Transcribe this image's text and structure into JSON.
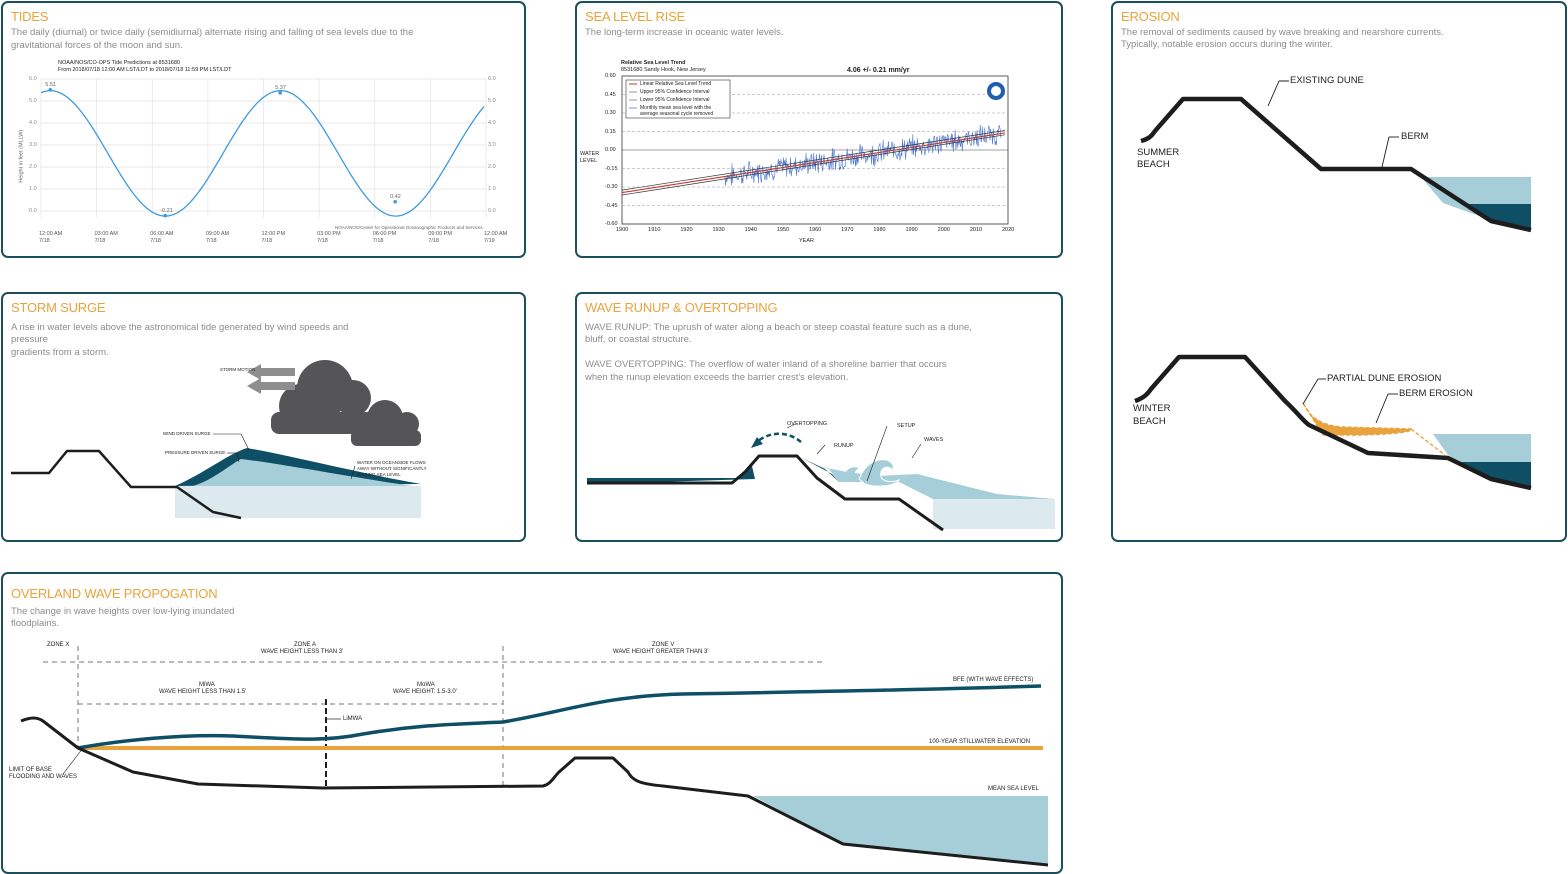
{
  "tides": {
    "title": "TIDES",
    "description": "The daily (diurnal) or twice daily (semidiurnal) alternate rising and falling of sea levels due to the gravitational forces of the moon and sun.",
    "chart_title_line1": "NOAA/NOS/CO-OPS Tide Predictions at 8531680",
    "chart_title_line2": "From 2018/07/18 12:00 AM LST/LDT to 2018/07/18 11:59 PM LST/LDT",
    "ylabel": "Height in feet (MLLW)",
    "credit": "NOAA/NOS/Center for Operational Oceanographic Products and Services",
    "yticks": [
      "6.0",
      "5.0",
      "4.0",
      "3.0",
      "2.0",
      "1.0",
      "0.0"
    ],
    "xticks": [
      {
        "time": "12:00 AM",
        "date": "7/18"
      },
      {
        "time": "03:00 AM",
        "date": "7/18"
      },
      {
        "time": "06:00 AM",
        "date": "7/18"
      },
      {
        "time": "09:00 AM",
        "date": "7/18"
      },
      {
        "time": "12:00 PM",
        "date": "7/18"
      },
      {
        "time": "03:00 PM",
        "date": "7/18"
      },
      {
        "time": "06:00 PM",
        "date": "7/18"
      },
      {
        "time": "09:00 PM",
        "date": "7/18"
      },
      {
        "time": "12:00 AM",
        "date": "7/19"
      }
    ],
    "peak_labels": [
      "5.51",
      "-0.21",
      "5.37",
      "0.42"
    ]
  },
  "sea_level": {
    "title": "SEA LEVEL RISE",
    "description": "The long-term increase in oceanic water levels.",
    "chart_title_line1": "Relative Sea Level Trend",
    "chart_title_line2": "8531680 Sandy Hook, New Jersey",
    "trend_value": "4.06 +/-  0.21 mm/yr",
    "legend": [
      "Linear Relative Sea Level Trend",
      "Upper 95% Confidence Interval",
      "Lower 95% Confidence Interval",
      "Monthly mean sea level with the average seasonal cycle removed"
    ],
    "ylabel": "WATER LEVEL",
    "xlabel": "YEAR",
    "yticks": [
      "0.60",
      "0.45",
      "0.30",
      "0.15",
      "0.00",
      "-0.15",
      "-0.30",
      "-0.45",
      "-0.60"
    ],
    "xticks": [
      "1900",
      "1910",
      "1920",
      "1930",
      "1940",
      "1950",
      "1960",
      "1970",
      "1980",
      "1990",
      "2000",
      "2010",
      "2020"
    ]
  },
  "erosion": {
    "title": "EROSION",
    "description_line1": "The removal of sediments caused by wave breaking and nearshore currents.",
    "description_line2": "Typically,  notable erosion occurs during the winter.",
    "labels": {
      "existing_dune": "EXISTING DUNE",
      "berm": "BERM",
      "summer_beach_1": "SUMMER",
      "summer_beach_2": "BEACH",
      "winter_beach_1": "WINTER",
      "winter_beach_2": "BEACH",
      "partial_dune_erosion": "PARTIAL DUNE EROSION",
      "berm_erosion": "BERM EROSION"
    }
  },
  "storm_surge": {
    "title": "STORM SURGE",
    "description_line1": "A rise in water levels above the astronomical tide generated by wind speeds and",
    "description_line2": "pressure",
    "description_line3": "gradients from a storm.",
    "labels": {
      "storm_motion": "STORM MOTION",
      "wind_driven": "WIND DRIVEN SURGE",
      "pressure_driven": "PRESSURE DRIVEN SURGE",
      "water_note_1": "WATER  ON  OCEANSIDE  FLOWS",
      "water_note_2": "AWAY  WITHOUT  SIGNIFICANTLY",
      "water_note_3": "RAISING SEA LEVEL"
    }
  },
  "runup": {
    "title": "WAVE RUNUP & OVERTOPPING",
    "runup_line1": "WAVE RUNUP: The uprush of water along a beach or steep coastal feature such as a dune,",
    "runup_line2": "bluff, or coastal structure.",
    "overtopping_line1": "WAVE OVERTOPPING: The overflow of water inland of a shoreline barrier that occurs",
    "overtopping_line2": "when  the runup elevation exceeds the barrier crest's elevation.",
    "labels": {
      "overtopping": "OVERTOPPING",
      "runup": "RUNUP",
      "setup": "SETUP",
      "waves": "WAVES"
    }
  },
  "overland": {
    "title": "OVERLAND WAVE PROPOGATION",
    "description_line1": "The change in wave heights over low-lying inundated",
    "description_line2": "floodplains.",
    "labels": {
      "zone_x": "ZONE X",
      "zone_a_1": "ZONE A",
      "zone_a_2": "WAVE HEIGHT LESS THAN 3'",
      "zone_v_1": "ZONE V",
      "zone_v_2": "WAVE HEIGHT GREATER THAN 3'",
      "miwa_1": "MiWA",
      "miwa_2": "WAVE HEIGHT LESS THAN 1.5'",
      "mowa_1": "MoWA",
      "mowa_2": "WAVE HEIGHT: 1.5-3.0'",
      "limwa": "LiMWA",
      "bfe": "BFE (WITH WAVE EFFECTS)",
      "stillwater": "100-YEAR STILLWATER ELEVATION",
      "msl": "MEAN SEA LEVEL",
      "limit_1": "LIMIT OF BASE",
      "limit_2": "FLOODING AND WAVES"
    }
  },
  "colors": {
    "border": "#1b4f5c",
    "title": "#e8a33c",
    "dark_water": "#0e4f66",
    "light_water": "#a6ced9",
    "sand": "#e8a33c",
    "ground": "#1d1d1d"
  }
}
